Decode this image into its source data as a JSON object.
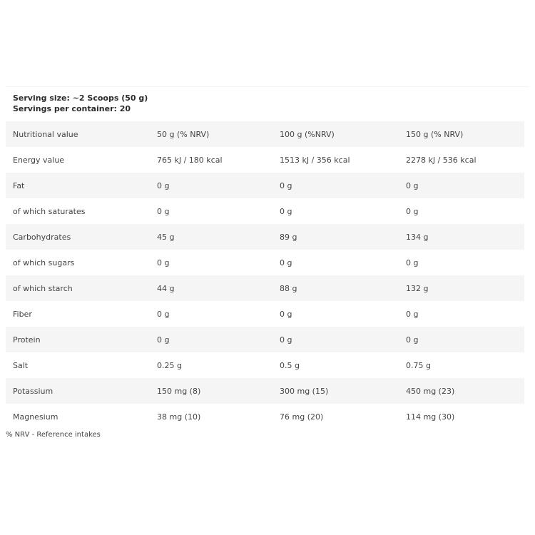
{
  "serving": {
    "size": "Serving size: ~2 Scoops (50 g)",
    "per_container": "Servings per container: 20"
  },
  "table": {
    "header": [
      "Nutritional value",
      "50 g (% NRV)",
      "100 g (%NRV)",
      "150 g (% NRV)"
    ],
    "rows": [
      [
        "Energy value",
        "765 kJ / 180 kcal",
        "1513 kJ / 356 kcal",
        "2278 kJ / 536 kcal"
      ],
      [
        "Fat",
        "0 g",
        "0 g",
        "0 g"
      ],
      [
        "of which saturates",
        "0 g",
        "0 g",
        "0 g"
      ],
      [
        "Carbohydrates",
        "45 g",
        "89 g",
        "134 g"
      ],
      [
        "of which sugars",
        "0 g",
        "0 g",
        "0 g"
      ],
      [
        "of which starch",
        "44 g",
        "88 g",
        "132  g"
      ],
      [
        "Fiber",
        "0 g",
        "0 g",
        "0 g"
      ],
      [
        "Protein",
        "0 g",
        "0 g",
        "0 g"
      ],
      [
        "Salt",
        "0.25 g",
        "0.5 g",
        "0.75 g"
      ],
      [
        "Potassium",
        "150 mg (8)",
        "300 mg (15)",
        "450 mg (23)"
      ],
      [
        "Magnesium",
        "38 mg (10)",
        "76 mg (20)",
        "114 mg (30)"
      ]
    ]
  },
  "footnote": "% NRV - Reference intakes"
}
